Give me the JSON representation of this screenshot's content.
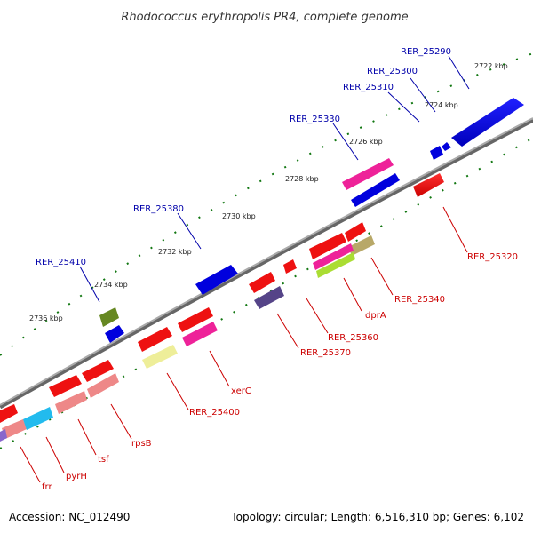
{
  "title": "Rhodococcus erythropolis PR4, complete genome",
  "footer": {
    "accession": "Accession: NC_012490",
    "topology": "Topology: circular; Length: 6,516,310 bp; Genes: 6,102"
  },
  "ticks": [
    "2722 kbp",
    "2724 kbp",
    "2726 kbp",
    "2728 kbp",
    "2730 kbp",
    "2732 kbp",
    "2734 kbp",
    "2736 kbp"
  ],
  "labels_top": [
    "RER_25290",
    "RER_25300",
    "RER_25310",
    "RER_25330",
    "RER_25380",
    "RER_25410"
  ],
  "labels_bottom": [
    "RER_25320",
    "RER_25340",
    "dprA",
    "RER_25360",
    "RER_25370",
    "xerC",
    "RER_25400",
    "rpsB",
    "tsf",
    "pyrH",
    "frr"
  ],
  "colors": {
    "forward_label": "#0000aa",
    "reverse_label": "#cc0000",
    "backbone": "#888888",
    "tick_dots": "#117711"
  }
}
